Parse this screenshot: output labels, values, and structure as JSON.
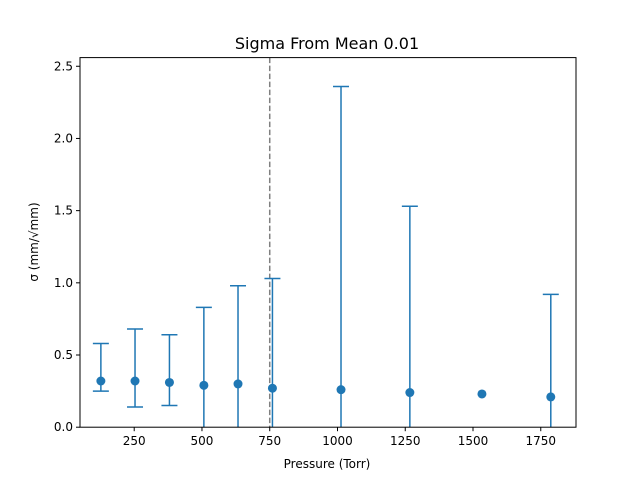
{
  "chart_data": {
    "type": "scatter",
    "title": "Sigma From Mean 0.01",
    "xlabel": "Pressure (Torr)",
    "ylabel": "σ (mm/√mm)",
    "xlim": [
      50,
      1880
    ],
    "ylim": [
      0,
      2.56
    ],
    "x_ticks": [
      250,
      500,
      750,
      1000,
      1250,
      1500,
      1750
    ],
    "y_ticks": [
      0.0,
      0.5,
      1.0,
      1.5,
      2.0,
      2.5
    ],
    "x_tick_labels": [
      "250",
      "500",
      "750",
      "1000",
      "1250",
      "1500",
      "1750"
    ],
    "y_tick_labels": [
      "0.0",
      "0.5",
      "1.0",
      "1.5",
      "2.0",
      "2.5"
    ],
    "grid": false,
    "color": "#1f77b4",
    "reference_line": {
      "x": 750,
      "style": "dashed",
      "color": "#808080"
    },
    "points": [
      {
        "x": 127,
        "y": 0.32,
        "err_low": 0.25,
        "err_high": 0.58
      },
      {
        "x": 253,
        "y": 0.32,
        "err_low": 0.14,
        "err_high": 0.68
      },
      {
        "x": 380,
        "y": 0.31,
        "err_low": 0.15,
        "err_high": 0.64
      },
      {
        "x": 507,
        "y": 0.29,
        "err_low": 0.0,
        "err_high": 0.83
      },
      {
        "x": 633,
        "y": 0.3,
        "err_low": 0.0,
        "err_high": 0.98
      },
      {
        "x": 760,
        "y": 0.27,
        "err_low": 0.0,
        "err_high": 1.03
      },
      {
        "x": 1013,
        "y": 0.26,
        "err_low": 0.0,
        "err_high": 2.36
      },
      {
        "x": 1267,
        "y": 0.24,
        "err_low": 0.0,
        "err_high": 1.53
      },
      {
        "x": 1533,
        "y": 0.23,
        "err_low": 0.23,
        "err_high": 0.23
      },
      {
        "x": 1787,
        "y": 0.21,
        "err_low": 0.0,
        "err_high": 0.92
      }
    ]
  }
}
